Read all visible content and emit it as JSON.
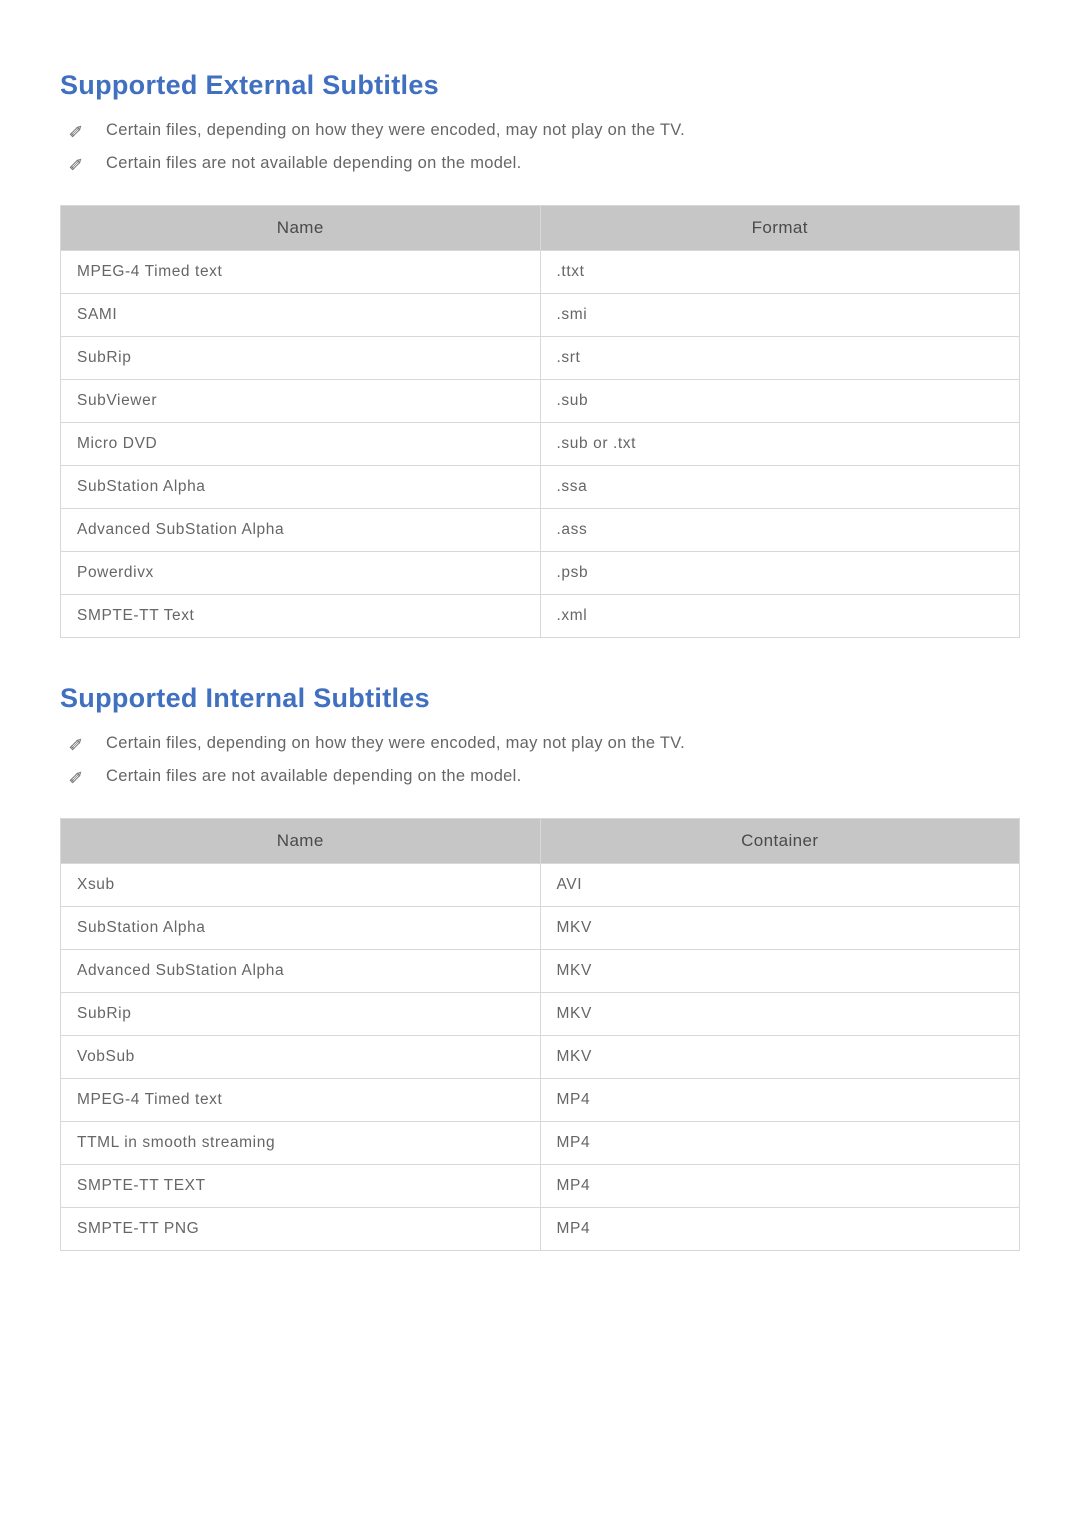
{
  "colors": {
    "heading": "#4070c0",
    "body_text": "#666666",
    "table_header_bg": "#c6c6c6",
    "table_header_text": "#4a4a4a",
    "table_border": "#d8d8d8",
    "background": "#ffffff",
    "icon": "#7a7a7a"
  },
  "typography": {
    "heading_fontsize": 27,
    "body_fontsize": 16.5,
    "table_header_fontsize": 17,
    "table_cell_fontsize": 15.5
  },
  "sections": [
    {
      "title": "Supported External Subtitles",
      "notes": [
        "Certain files, depending on how they were encoded, may not play on the TV.",
        "Certain files are not available depending on the model."
      ],
      "table": {
        "columns": [
          "Name",
          "Format"
        ],
        "column_widths": [
          "50%",
          "50%"
        ],
        "rows": [
          [
            "MPEG-4 Timed text",
            ".ttxt"
          ],
          [
            "SAMI",
            ".smi"
          ],
          [
            "SubRip",
            ".srt"
          ],
          [
            "SubViewer",
            ".sub"
          ],
          [
            "Micro DVD",
            ".sub or .txt"
          ],
          [
            "SubStation Alpha",
            ".ssa"
          ],
          [
            "Advanced SubStation Alpha",
            ".ass"
          ],
          [
            "Powerdivx",
            ".psb"
          ],
          [
            "SMPTE-TT Text",
            ".xml"
          ]
        ]
      }
    },
    {
      "title": "Supported Internal Subtitles",
      "notes": [
        "Certain files, depending on how they were encoded, may not play on the TV.",
        "Certain files are not available depending on the model."
      ],
      "table": {
        "columns": [
          "Name",
          "Container"
        ],
        "column_widths": [
          "50%",
          "50%"
        ],
        "rows": [
          [
            "Xsub",
            "AVI"
          ],
          [
            "SubStation Alpha",
            "MKV"
          ],
          [
            "Advanced SubStation Alpha",
            "MKV"
          ],
          [
            "SubRip",
            "MKV"
          ],
          [
            "VobSub",
            "MKV"
          ],
          [
            "MPEG-4 Timed text",
            "MP4"
          ],
          [
            "TTML in smooth streaming",
            "MP4"
          ],
          [
            "SMPTE-TT TEXT",
            "MP4"
          ],
          [
            "SMPTE-TT PNG",
            "MP4"
          ]
        ]
      }
    }
  ]
}
